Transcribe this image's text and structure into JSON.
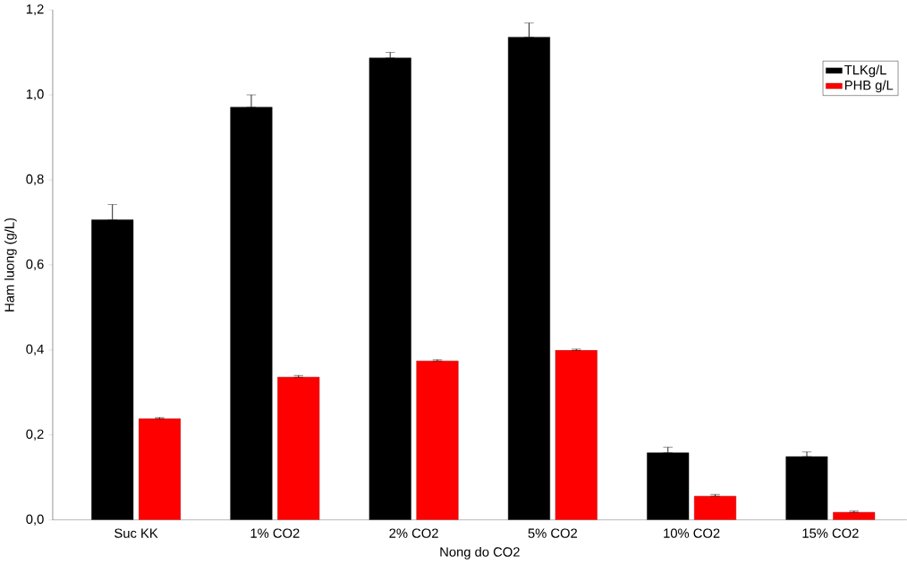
{
  "chart_data": {
    "type": "bar",
    "xlabel": "Nong do CO2",
    "ylabel": "Ham luong (g/L)",
    "categories": [
      "Suc KK",
      "1% CO2",
      "2% CO2",
      "5% CO2",
      "10% CO2",
      "15% CO2"
    ],
    "series": [
      {
        "name": "TLKg/L",
        "color": "#000000",
        "values": [
          0.706,
          0.971,
          1.087,
          1.136,
          0.158,
          0.149
        ],
        "errors": [
          [
            0.706,
            0.742
          ],
          [
            0.971,
            1.0
          ],
          [
            1.087,
            1.1
          ],
          [
            1.136,
            1.169
          ],
          [
            0.158,
            0.171
          ],
          [
            0.149,
            0.16
          ]
        ]
      },
      {
        "name": "PHB g/L",
        "color": "#ff0000",
        "values": [
          0.238,
          0.336,
          0.374,
          0.399,
          0.056,
          0.018
        ],
        "errors": [
          [
            0.238,
            0.241
          ],
          [
            0.336,
            0.34
          ],
          [
            0.374,
            0.377
          ],
          [
            0.399,
            0.402
          ],
          [
            0.056,
            0.06
          ],
          [
            0.018,
            0.021
          ]
        ]
      }
    ],
    "ylim": [
      0,
      1.2
    ],
    "yticks": [
      {
        "value": 0,
        "label": "0,0"
      },
      {
        "value": 0.2,
        "label": "0,2"
      },
      {
        "value": 0.4,
        "label": "0,4"
      },
      {
        "value": 0.6,
        "label": "0,6"
      },
      {
        "value": 0.8,
        "label": "0,8"
      },
      {
        "value": 1.0,
        "label": "1,0"
      },
      {
        "value": 1.2,
        "label": "1,2"
      }
    ],
    "legend": "top right",
    "grid": false
  }
}
